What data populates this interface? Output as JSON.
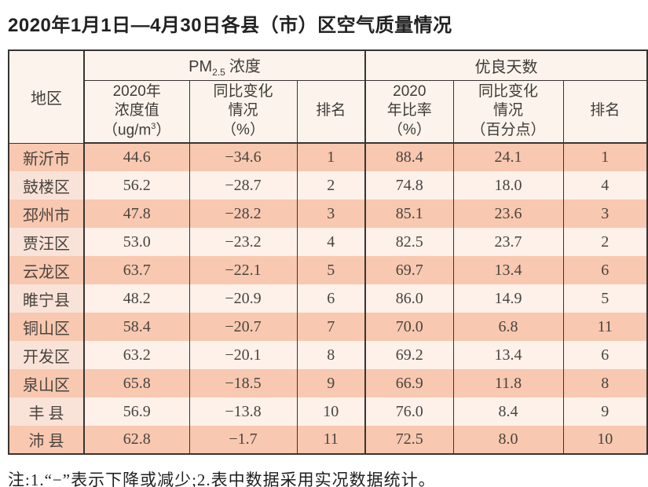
{
  "page": {
    "title": "2020年1月1日—4月30日各县（市）区空气质量情况",
    "footnote": "注:1.“−”表示下降或减少;2.表中数据采用实况数据统计。"
  },
  "colors": {
    "row_odd_bg": "#f8c8b0",
    "row_even_bg": "#fdf1ea",
    "row_even_region_bg": "#f9e3d8",
    "header_bg": "#fcf4ec",
    "border": "#383432"
  },
  "table": {
    "header": {
      "region": "地区",
      "pm_group": {
        "prefix": "PM",
        "subscript": "2.5",
        "suffix": "浓度"
      },
      "good_group": "优良天数",
      "pm_value": {
        "line1": "2020年",
        "line2": "浓度值",
        "line3_pre": "（ug/m",
        "line3_sup": "3",
        "line3_post": "）"
      },
      "pm_change": {
        "line1": "同比变化",
        "line2": "情况",
        "line3": "（%）"
      },
      "pm_rank": "排名",
      "good_ratio": {
        "line1": "2020",
        "line2": "年比率",
        "line3": "（%）"
      },
      "good_change": {
        "line1": "同比变化",
        "line2": "情况",
        "line3": "（百分点）"
      },
      "good_rank": "排名"
    },
    "rows": [
      {
        "region": "新沂市",
        "pm_value": "44.6",
        "pm_change": "−34.6",
        "pm_rank": "1",
        "good_ratio": "88.4",
        "good_change": "24.1",
        "good_rank": "1"
      },
      {
        "region": "鼓楼区",
        "pm_value": "56.2",
        "pm_change": "−28.7",
        "pm_rank": "2",
        "good_ratio": "74.8",
        "good_change": "18.0",
        "good_rank": "4"
      },
      {
        "region": "邳州市",
        "pm_value": "47.8",
        "pm_change": "−28.2",
        "pm_rank": "3",
        "good_ratio": "85.1",
        "good_change": "23.6",
        "good_rank": "3"
      },
      {
        "region": "贾汪区",
        "pm_value": "53.0",
        "pm_change": "−23.2",
        "pm_rank": "4",
        "good_ratio": "82.5",
        "good_change": "23.7",
        "good_rank": "2"
      },
      {
        "region": "云龙区",
        "pm_value": "63.7",
        "pm_change": "−22.1",
        "pm_rank": "5",
        "good_ratio": "69.7",
        "good_change": "13.4",
        "good_rank": "6"
      },
      {
        "region": "睢宁县",
        "pm_value": "48.2",
        "pm_change": "−20.9",
        "pm_rank": "6",
        "good_ratio": "86.0",
        "good_change": "14.9",
        "good_rank": "5"
      },
      {
        "region": "铜山区",
        "pm_value": "58.4",
        "pm_change": "−20.7",
        "pm_rank": "7",
        "good_ratio": "70.0",
        "good_change": "6.8",
        "good_rank": "11"
      },
      {
        "region": "开发区",
        "pm_value": "63.2",
        "pm_change": "−20.1",
        "pm_rank": "8",
        "good_ratio": "69.2",
        "good_change": "13.4",
        "good_rank": "6"
      },
      {
        "region": "泉山区",
        "pm_value": "65.8",
        "pm_change": "−18.5",
        "pm_rank": "9",
        "good_ratio": "66.9",
        "good_change": "11.8",
        "good_rank": "8"
      },
      {
        "region": "丰 县",
        "pm_value": "56.9",
        "pm_change": "−13.8",
        "pm_rank": "10",
        "good_ratio": "76.0",
        "good_change": "8.4",
        "good_rank": "9"
      },
      {
        "region": "沛 县",
        "pm_value": "62.8",
        "pm_change": "−1.7",
        "pm_rank": "11",
        "good_ratio": "72.5",
        "good_change": "8.0",
        "good_rank": "10"
      }
    ]
  }
}
